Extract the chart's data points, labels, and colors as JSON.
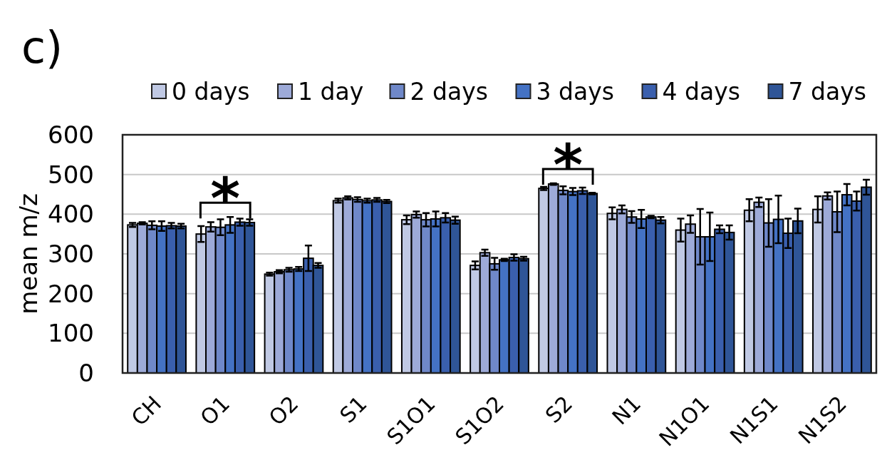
{
  "chart_data": {
    "type": "bar",
    "title": "c)",
    "ylabel": "mean m/z",
    "categories": [
      "CH",
      "O1",
      "O2",
      "S1",
      "S1O1",
      "S1O2",
      "S2",
      "N1",
      "N1O1",
      "N1S1",
      "N1S2"
    ],
    "series": [
      {
        "name": "0 days",
        "color": "#c0c9e4",
        "values": [
          373,
          350,
          249,
          434,
          386,
          271,
          465,
          402,
          360,
          410,
          412
        ],
        "errors": [
          5,
          20,
          4,
          5,
          11,
          10,
          4,
          15,
          29,
          28,
          33
        ]
      },
      {
        "name": "1 day",
        "color": "#9daad8",
        "values": [
          377,
          368,
          255,
          441,
          399,
          303,
          476,
          412,
          375,
          430,
          446
        ],
        "errors": [
          3,
          12,
          4,
          4,
          8,
          8,
          2,
          10,
          22,
          12,
          9
        ]
      },
      {
        "name": "2 days",
        "color": "#6f88c9",
        "values": [
          372,
          367,
          260,
          437,
          386,
          275,
          460,
          393,
          343,
          378,
          406
        ],
        "errors": [
          10,
          20,
          5,
          6,
          17,
          15,
          10,
          15,
          70,
          60,
          51
        ]
      },
      {
        "name": "3 days",
        "color": "#4472c4",
        "values": [
          370,
          373,
          262,
          434,
          388,
          285,
          457,
          388,
          343,
          387,
          449
        ],
        "errors": [
          12,
          20,
          5,
          5,
          19,
          3,
          9,
          23,
          61,
          60,
          27
        ]
      },
      {
        "name": "4 days",
        "color": "#3a5fad",
        "values": [
          371,
          380,
          289,
          436,
          391,
          291,
          459,
          393,
          362,
          352,
          433
        ],
        "errors": [
          7,
          9,
          32,
          5,
          12,
          8,
          8,
          3,
          10,
          37,
          24
        ]
      },
      {
        "name": "7 days",
        "color": "#2f5597",
        "values": [
          370,
          379,
          271,
          432,
          385,
          288,
          452,
          385,
          354,
          383,
          468
        ],
        "errors": [
          6,
          8,
          6,
          4,
          9,
          5,
          2,
          8,
          18,
          31,
          19
        ]
      }
    ],
    "ylim": [
      0,
      600
    ],
    "yticks": [
      0,
      100,
      200,
      300,
      400,
      500,
      600
    ],
    "grid": "y",
    "legend": "top",
    "annotations": [
      "*",
      "*"
    ]
  }
}
